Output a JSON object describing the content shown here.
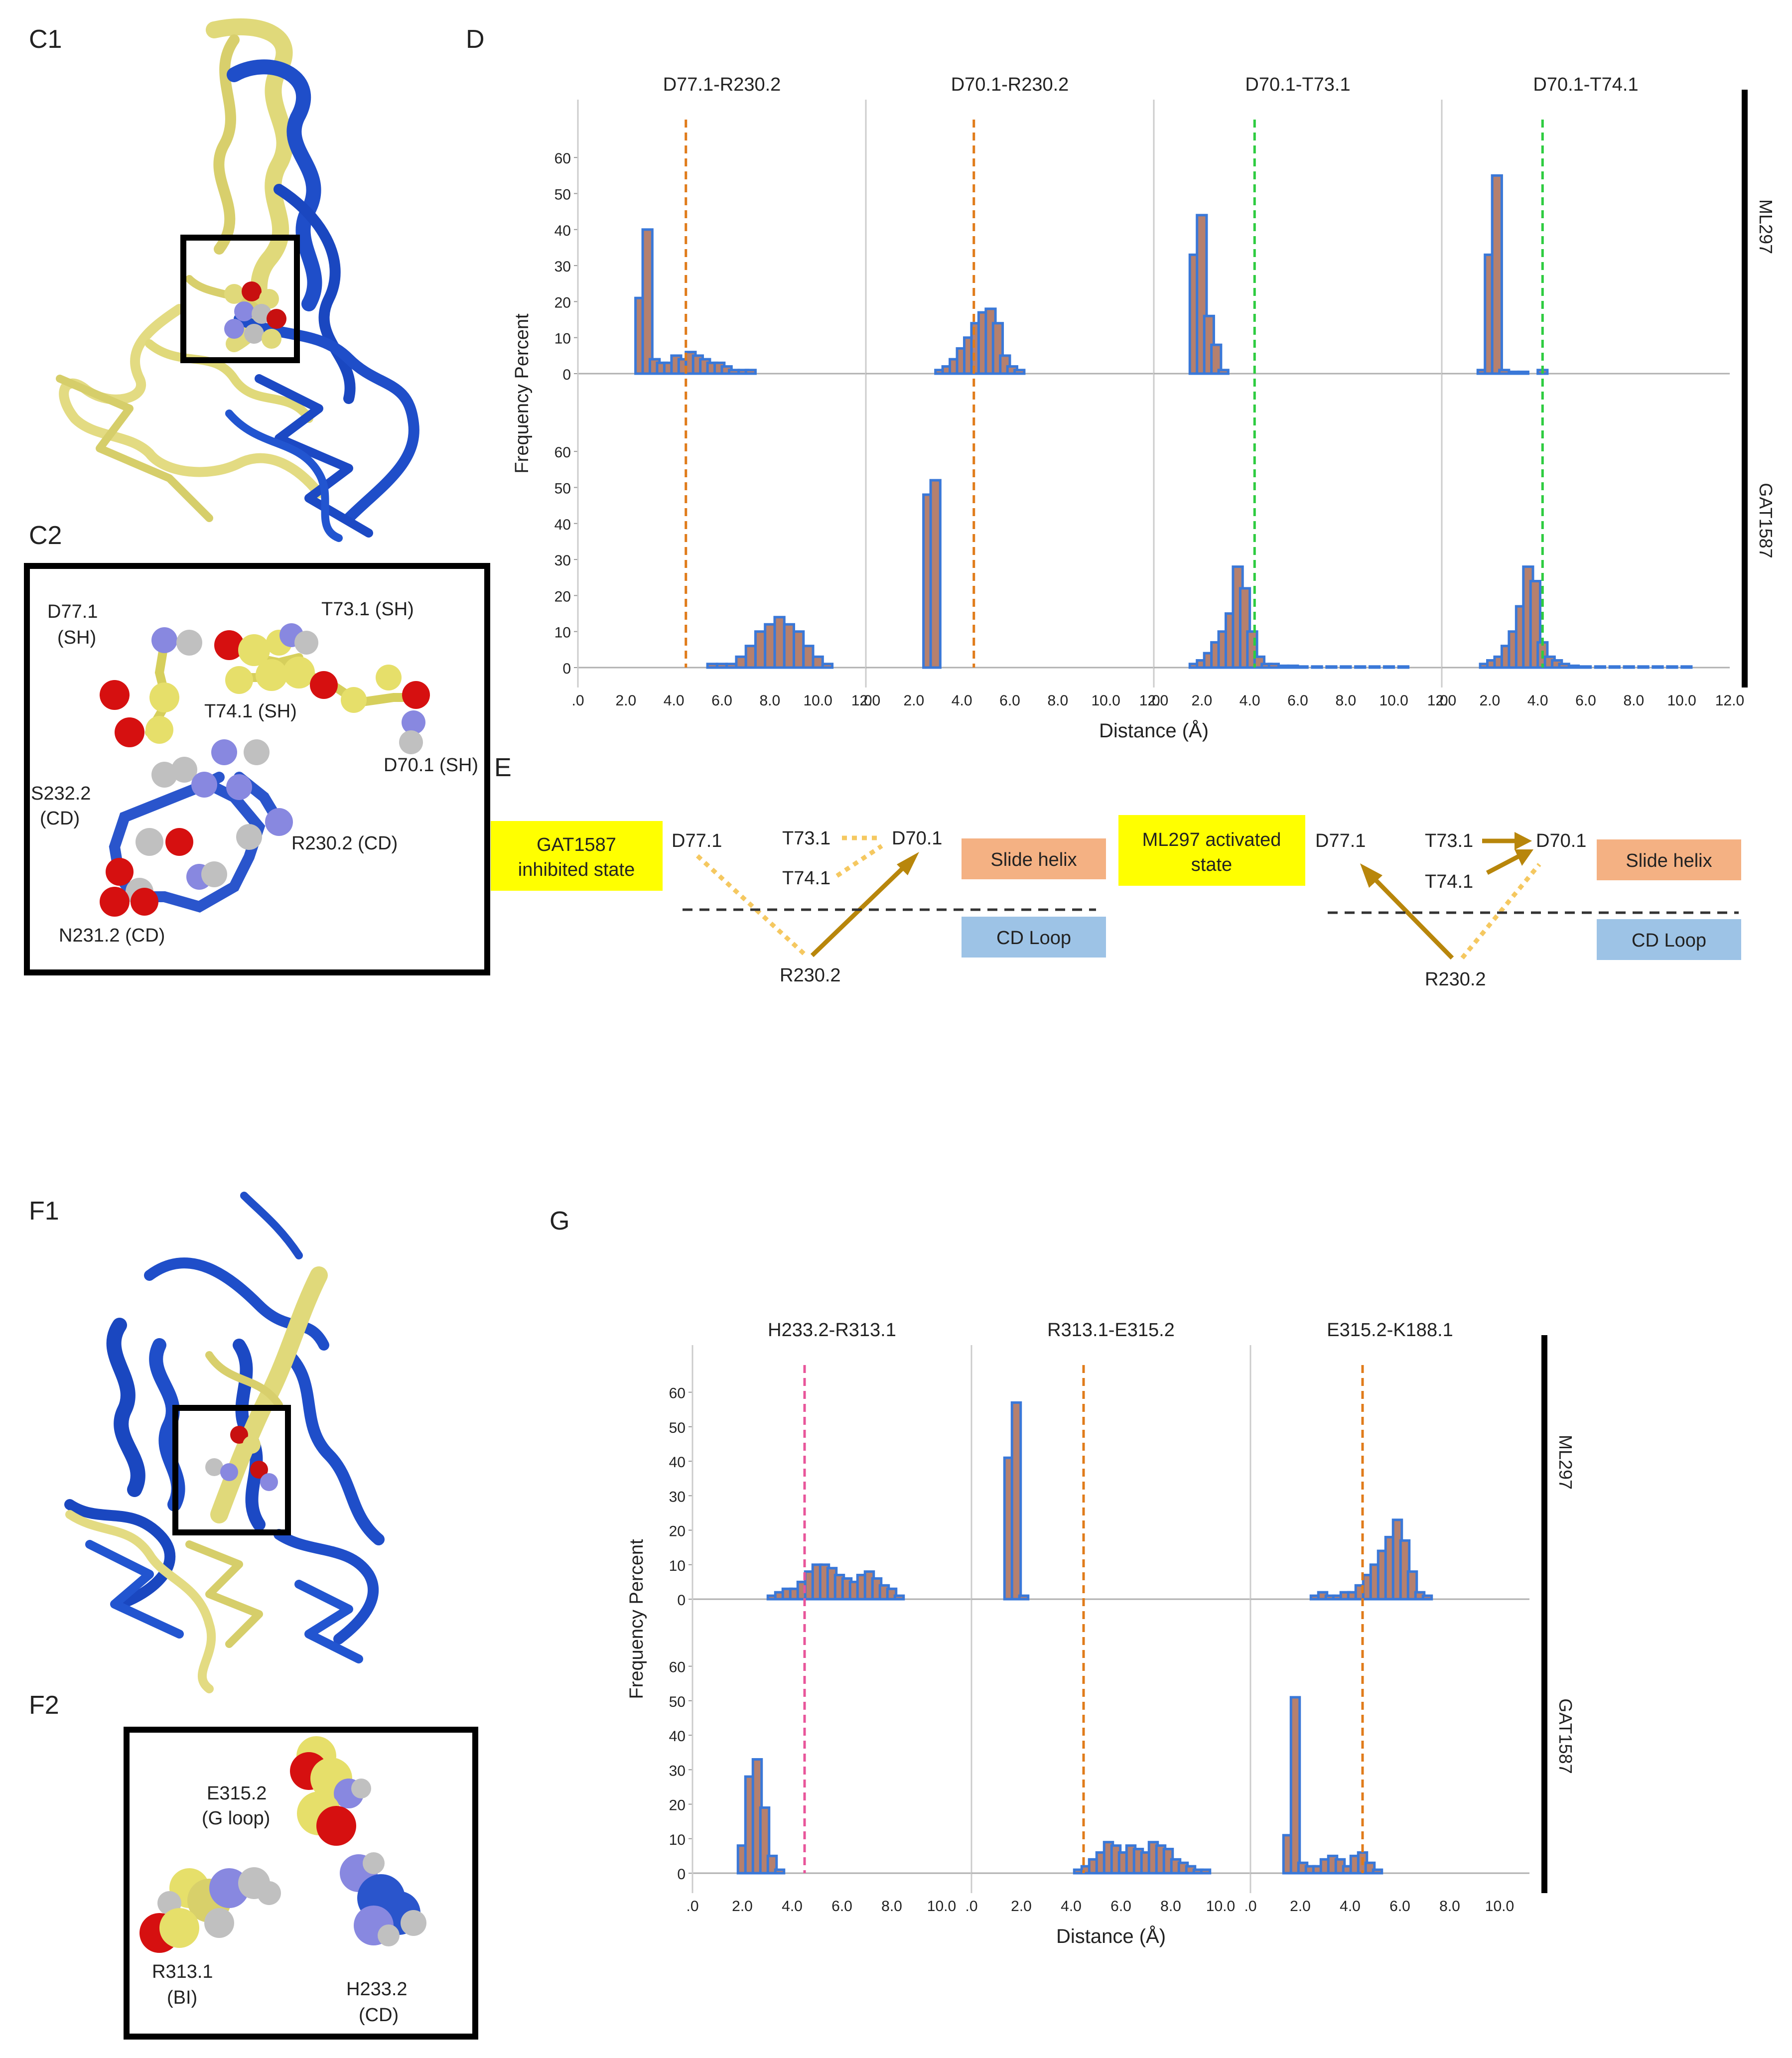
{
  "panel_labels": {
    "c1": "C1",
    "c2": "C2",
    "d": "D",
    "e": "E",
    "f1": "F1",
    "f2": "F2",
    "g": "G"
  },
  "c2_labels": {
    "d77": "D77.1",
    "d77_sub": "(SH)",
    "t73": "T73.1 (SH)",
    "t74": "T74.1 (SH)",
    "d70": "D70.1 (SH)",
    "s232": "S232.2",
    "s232_sub": "(CD)",
    "r230": "R230.2 (CD)",
    "n231": "N231.2 (CD)"
  },
  "f2_labels": {
    "e315": "E315.2",
    "e315_sub": "(G loop)",
    "r313": "R313.1",
    "r313_sub": "(BI)",
    "h233": "H233.2",
    "h233_sub": "(CD)"
  },
  "panel_e": {
    "inhibited_line1": "GAT1587",
    "inhibited_line2": "inhibited state",
    "activated_line1": "ML297 activated",
    "activated_line2": "state",
    "slide_helix": "Slide helix",
    "cd_loop": "CD Loop",
    "d77": "D77.1",
    "t73": "T73.1",
    "t74": "T74.1",
    "d70": "D70.1",
    "r230": "R230.2"
  },
  "colors": {
    "bar_fill": "#b5806e",
    "bar_edge": "#3a78d8",
    "cutoff_orange": "#e07b1a",
    "cutoff_green": "#2ecc40",
    "cutoff_pink": "#e8559a",
    "arrow": "#b8860b",
    "dotted": "#f5c860",
    "yellow_box": "#ffff00",
    "slide_helix": "#f4b183",
    "cd_loop": "#9dc3e6"
  },
  "chart_data": [
    {
      "type": "bar",
      "panel": "D",
      "ylabel": "Frequency Percent",
      "xlabel": "Distance (Å)",
      "row_labels": [
        "ML297",
        "GAT1587"
      ],
      "xlim": [
        0,
        12
      ],
      "ylim": [
        0,
        65
      ],
      "yticks": [
        "0",
        "10",
        "20",
        "30",
        "40",
        "50",
        "60"
      ],
      "xticks": [
        ".0",
        "2.0",
        "4.0",
        "6.0",
        "8.0",
        "10.0",
        "12.0"
      ],
      "bin_width": 0.4,
      "facets": [
        {
          "title": "D77.1-R230.2",
          "cutoff": 4.5,
          "cutoff_color": "orange",
          "ML297": [
            [
              2.6,
              21
            ],
            [
              2.9,
              40
            ],
            [
              3.2,
              4
            ],
            [
              3.5,
              3
            ],
            [
              3.8,
              3
            ],
            [
              4.1,
              5
            ],
            [
              4.4,
              4
            ],
            [
              4.7,
              6
            ],
            [
              5.0,
              5
            ],
            [
              5.3,
              4
            ],
            [
              5.6,
              3
            ],
            [
              5.9,
              3
            ],
            [
              6.2,
              2
            ],
            [
              6.5,
              1
            ],
            [
              6.9,
              1
            ],
            [
              7.2,
              1
            ]
          ],
          "GAT1587": [
            [
              5.6,
              1
            ],
            [
              6.0,
              1
            ],
            [
              6.4,
              1
            ],
            [
              6.8,
              3
            ],
            [
              7.2,
              6
            ],
            [
              7.6,
              10
            ],
            [
              8.0,
              12
            ],
            [
              8.4,
              14
            ],
            [
              8.8,
              12
            ],
            [
              9.2,
              10
            ],
            [
              9.6,
              6
            ],
            [
              10.0,
              3
            ],
            [
              10.4,
              1
            ]
          ]
        },
        {
          "title": "D70.1-R230.2",
          "cutoff": 4.5,
          "cutoff_color": "orange",
          "ML297": [
            [
              3.1,
              1
            ],
            [
              3.4,
              2
            ],
            [
              3.7,
              4
            ],
            [
              4.0,
              7
            ],
            [
              4.3,
              10
            ],
            [
              4.6,
              14
            ],
            [
              4.9,
              17
            ],
            [
              5.2,
              18
            ],
            [
              5.5,
              14
            ],
            [
              5.8,
              5
            ],
            [
              6.1,
              2
            ],
            [
              6.4,
              1
            ]
          ],
          "GAT1587": [
            [
              2.6,
              48
            ],
            [
              2.9,
              52
            ]
          ]
        },
        {
          "title": "D70.1-T73.1",
          "cutoff": 4.2,
          "cutoff_color": "green",
          "ML297": [
            [
              1.7,
              33
            ],
            [
              2.0,
              44
            ],
            [
              2.3,
              16
            ],
            [
              2.6,
              8
            ],
            [
              2.9,
              1
            ]
          ],
          "GAT1587": [
            [
              1.7,
              1
            ],
            [
              2.0,
              2
            ],
            [
              2.3,
              4
            ],
            [
              2.6,
              7
            ],
            [
              2.9,
              10
            ],
            [
              3.2,
              15
            ],
            [
              3.5,
              28
            ],
            [
              3.8,
              22
            ],
            [
              4.1,
              10
            ],
            [
              4.4,
              3
            ],
            [
              4.7,
              1
            ],
            [
              5.0,
              1
            ],
            [
              5.4,
              0.5
            ],
            [
              5.8,
              0.5
            ],
            [
              6.2,
              0.3
            ],
            [
              6.8,
              0.3
            ],
            [
              7.4,
              0.3
            ],
            [
              8.0,
              0.3
            ],
            [
              8.6,
              0.3
            ],
            [
              9.2,
              0.3
            ],
            [
              9.8,
              0.3
            ],
            [
              10.4,
              0.3
            ]
          ]
        },
        {
          "title": "D70.1-T74.1",
          "cutoff": 4.2,
          "cutoff_color": "green",
          "ML297": [
            [
              1.7,
              1
            ],
            [
              2.0,
              33
            ],
            [
              2.3,
              55
            ],
            [
              2.6,
              1
            ],
            [
              3.0,
              0.5
            ],
            [
              3.4,
              0.5
            ],
            [
              4.2,
              1
            ]
          ],
          "GAT1587": [
            [
              1.8,
              1
            ],
            [
              2.1,
              2
            ],
            [
              2.4,
              3
            ],
            [
              2.7,
              6
            ],
            [
              3.0,
              10
            ],
            [
              3.3,
              17
            ],
            [
              3.6,
              28
            ],
            [
              3.9,
              24
            ],
            [
              4.2,
              7
            ],
            [
              4.5,
              3
            ],
            [
              4.8,
              2
            ],
            [
              5.1,
              1
            ],
            [
              5.5,
              0.5
            ],
            [
              6.0,
              0.3
            ],
            [
              6.6,
              0.3
            ],
            [
              7.2,
              0.3
            ],
            [
              7.8,
              0.3
            ],
            [
              8.4,
              0.3
            ],
            [
              9.0,
              0.3
            ],
            [
              9.6,
              0.3
            ],
            [
              10.2,
              0.3
            ]
          ]
        }
      ]
    },
    {
      "type": "bar",
      "panel": "G",
      "ylabel": "Frequency Percent",
      "xlabel": "Distance (Å)",
      "row_labels": [
        "ML297",
        "GAT1587"
      ],
      "xlim": [
        0,
        10
      ],
      "ylim": [
        0,
        65
      ],
      "yticks": [
        "0",
        "10",
        "20",
        "30",
        "40",
        "50",
        "60"
      ],
      "xticks": [
        ".0",
        "2.0",
        "4.0",
        "6.0",
        "8.0",
        "10.0"
      ],
      "bin_width": 0.35,
      "facets": [
        {
          "title": "H233.2-R313.1",
          "cutoff": 4.5,
          "cutoff_color": "pink",
          "ML297": [
            [
              3.2,
              1
            ],
            [
              3.5,
              2
            ],
            [
              3.8,
              3
            ],
            [
              4.1,
              3
            ],
            [
              4.4,
              5
            ],
            [
              4.7,
              8
            ],
            [
              5.0,
              10
            ],
            [
              5.3,
              10
            ],
            [
              5.6,
              9
            ],
            [
              5.9,
              7
            ],
            [
              6.2,
              6
            ],
            [
              6.5,
              5
            ],
            [
              6.8,
              7
            ],
            [
              7.1,
              8
            ],
            [
              7.4,
              6
            ],
            [
              7.7,
              4
            ],
            [
              8.0,
              3
            ],
            [
              8.3,
              1
            ]
          ],
          "GAT1587": [
            [
              2.0,
              8
            ],
            [
              2.3,
              28
            ],
            [
              2.6,
              33
            ],
            [
              2.9,
              19
            ],
            [
              3.2,
              5
            ],
            [
              3.5,
              1
            ]
          ]
        },
        {
          "title": "R313.1-E315.2",
          "cutoff": 4.5,
          "cutoff_color": "orange",
          "ML297": [
            [
              1.5,
              41
            ],
            [
              1.8,
              57
            ],
            [
              2.1,
              1
            ]
          ],
          "GAT1587": [
            [
              4.3,
              1
            ],
            [
              4.6,
              2
            ],
            [
              4.9,
              4
            ],
            [
              5.2,
              6
            ],
            [
              5.5,
              9
            ],
            [
              5.8,
              8
            ],
            [
              6.1,
              6
            ],
            [
              6.4,
              8
            ],
            [
              6.7,
              7
            ],
            [
              7.0,
              6
            ],
            [
              7.3,
              9
            ],
            [
              7.6,
              8
            ],
            [
              7.9,
              7
            ],
            [
              8.2,
              4
            ],
            [
              8.5,
              3
            ],
            [
              8.8,
              2
            ],
            [
              9.1,
              1
            ],
            [
              9.4,
              1
            ]
          ]
        },
        {
          "title": "E315.2-K188.1",
          "cutoff": 4.5,
          "cutoff_color": "orange",
          "ML297": [
            [
              2.6,
              1
            ],
            [
              2.9,
              2
            ],
            [
              3.2,
              1
            ],
            [
              3.5,
              1
            ],
            [
              3.8,
              2
            ],
            [
              4.1,
              2
            ],
            [
              4.4,
              4
            ],
            [
              4.7,
              7
            ],
            [
              5.0,
              10
            ],
            [
              5.3,
              14
            ],
            [
              5.6,
              18
            ],
            [
              5.9,
              23
            ],
            [
              6.2,
              17
            ],
            [
              6.5,
              8
            ],
            [
              6.8,
              2
            ],
            [
              7.1,
              1
            ]
          ],
          "GAT1587": [
            [
              1.5,
              11
            ],
            [
              1.8,
              51
            ],
            [
              2.1,
              3
            ],
            [
              2.4,
              2
            ],
            [
              2.7,
              2
            ],
            [
              3.0,
              4
            ],
            [
              3.3,
              5
            ],
            [
              3.6,
              4
            ],
            [
              3.9,
              2
            ],
            [
              4.2,
              5
            ],
            [
              4.5,
              6
            ],
            [
              4.8,
              3
            ],
            [
              5.1,
              1
            ]
          ]
        }
      ]
    }
  ]
}
